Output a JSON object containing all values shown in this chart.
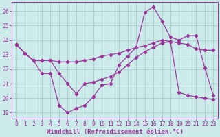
{
  "background_color": "#cceaea",
  "grid_color": "#aacccc",
  "line_color": "#993399",
  "xlabel": "Windchill (Refroidissement éolien,°C)",
  "xlabel_fontsize": 6.5,
  "tick_fontsize": 5.8,
  "ylim": [
    18.6,
    26.6
  ],
  "xlim": [
    -0.5,
    23.5
  ],
  "yticks": [
    19,
    20,
    21,
    22,
    23,
    24,
    25,
    26
  ],
  "xticks": [
    0,
    1,
    2,
    3,
    4,
    5,
    6,
    7,
    8,
    9,
    10,
    11,
    12,
    13,
    14,
    15,
    16,
    17,
    18,
    19,
    20,
    21,
    22,
    23
  ],
  "line1_x": [
    0,
    1,
    2,
    3,
    4,
    5,
    6,
    7,
    8,
    9,
    10,
    11,
    12,
    13,
    14,
    15,
    16,
    17,
    18,
    19,
    20,
    21,
    22,
    23
  ],
  "line1_y": [
    23.7,
    23.1,
    22.6,
    22.6,
    22.6,
    22.5,
    22.5,
    22.5,
    22.6,
    22.7,
    22.9,
    23.0,
    23.1,
    23.3,
    23.5,
    23.6,
    23.8,
    24.0,
    23.9,
    23.8,
    23.7,
    23.4,
    23.3,
    23.3
  ],
  "line2_x": [
    0,
    1,
    2,
    3,
    4,
    5,
    6,
    7,
    8,
    9,
    10,
    11,
    12,
    13,
    14,
    15,
    16,
    17,
    18,
    19,
    20,
    21,
    22,
    23
  ],
  "line2_y": [
    23.7,
    23.1,
    22.6,
    21.7,
    21.7,
    19.5,
    19.0,
    19.3,
    19.5,
    20.1,
    20.9,
    21.0,
    22.3,
    22.9,
    23.5,
    25.9,
    26.3,
    25.3,
    24.2,
    24.0,
    24.3,
    24.3,
    22.1,
    20.2
  ],
  "line3_x": [
    0,
    1,
    2,
    3,
    4,
    5,
    6,
    7,
    8,
    9,
    10,
    11,
    12,
    13,
    14,
    15,
    16,
    17,
    18,
    19,
    20,
    21,
    22,
    23
  ],
  "line3_y": [
    23.7,
    23.1,
    22.6,
    22.6,
    22.6,
    21.7,
    21.0,
    20.3,
    21.0,
    21.1,
    21.3,
    21.5,
    21.8,
    22.3,
    22.8,
    23.2,
    23.5,
    23.8,
    23.9,
    20.4,
    20.2,
    20.1,
    20.0,
    19.9
  ]
}
